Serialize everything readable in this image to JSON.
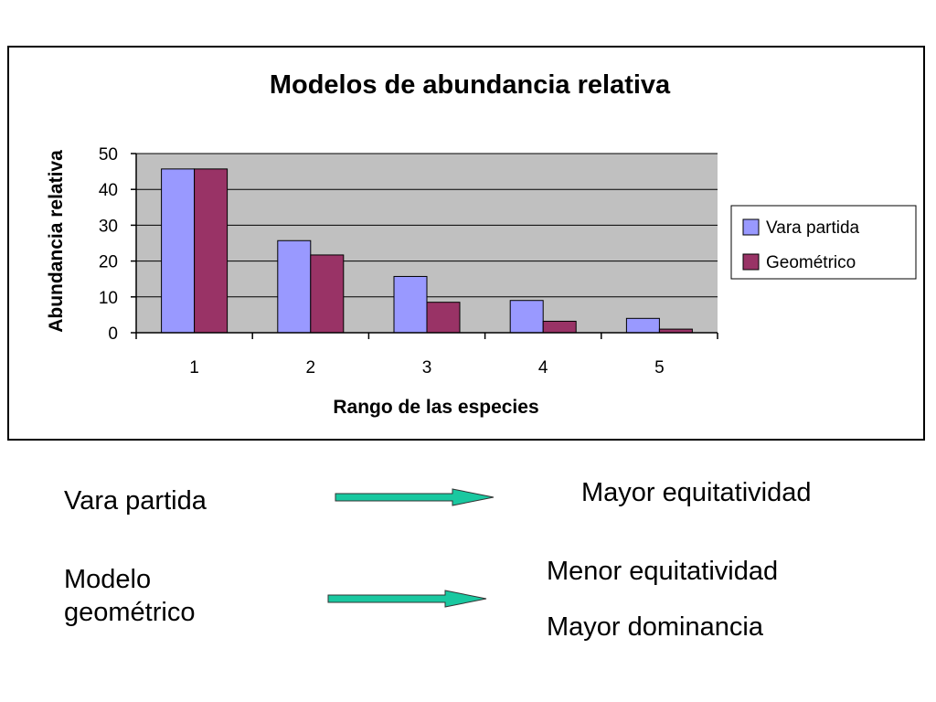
{
  "chart_data": {
    "type": "bar",
    "title": "Modelos de abundancia relativa",
    "xlabel": "Rango de las especies",
    "ylabel": "Abundancia relativa",
    "categories": [
      "1",
      "2",
      "3",
      "4",
      "5"
    ],
    "series": [
      {
        "name": "Vara partida",
        "values": [
          45.7,
          25.7,
          15.7,
          9.0,
          4.0
        ],
        "color": "#9999ff"
      },
      {
        "name": "Geométrico",
        "values": [
          45.7,
          21.7,
          8.5,
          3.2,
          1.0
        ],
        "color": "#993366"
      }
    ],
    "ylim": [
      0,
      50
    ],
    "yticks": [
      0,
      10,
      20,
      30,
      40,
      50
    ],
    "grid": true,
    "plot_background": "#c0c0c0",
    "legend_position": "right"
  },
  "captions": {
    "vara_partida": "Vara partida",
    "modelo_geometrico_line1": "Modelo",
    "modelo_geometrico_line2": "geométrico",
    "mayor_equitatividad": "Mayor equitatividad",
    "menor_equitatividad": "Menor equitatividad",
    "mayor_dominancia": "Mayor dominancia"
  },
  "arrow_color": "#19c8a0"
}
